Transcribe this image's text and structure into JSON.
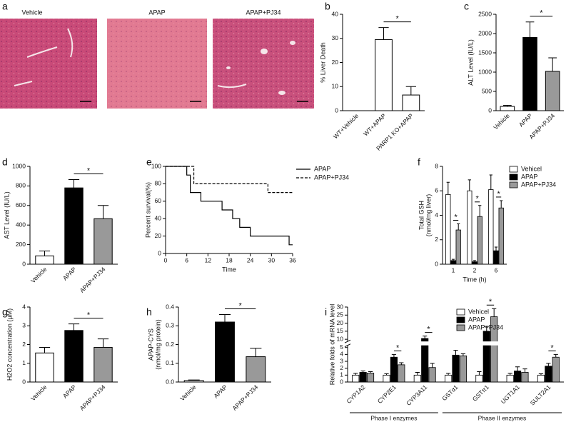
{
  "images": {
    "panel": "a",
    "labels": [
      "Vehicle",
      "APAP",
      "APAP+PJ34"
    ]
  },
  "chart_data": [
    {
      "type": "bar",
      "panel": "b",
      "ylabel": "% Liver Death",
      "categories": [
        "WT+Vehicle",
        "WT+APAP",
        "PARP1 KO+APAP"
      ],
      "values": [
        0,
        29.5,
        6.5
      ],
      "errors": [
        null,
        5,
        3.5
      ],
      "colors": [
        "#ffffff",
        "#ffffff",
        "#ffffff"
      ],
      "ylim": [
        0,
        40
      ],
      "yticks": [
        0,
        10,
        20,
        30,
        40
      ],
      "significance": [
        {
          "between": [
            1,
            2
          ],
          "label": "*"
        }
      ]
    },
    {
      "type": "bar",
      "panel": "c",
      "ylabel": "ALT Level (IU/L)",
      "categories": [
        "Vehicle",
        "APAP",
        "APAP+PJ34"
      ],
      "values": [
        110,
        1900,
        1020
      ],
      "errors": [
        30,
        400,
        350
      ],
      "colors": [
        "#ffffff",
        "#000000",
        "#999999"
      ],
      "ylim": [
        0,
        2500
      ],
      "yticks": [
        0,
        500,
        1000,
        1500,
        2000,
        2500
      ],
      "significance": [
        {
          "between": [
            1,
            2
          ],
          "label": "*"
        }
      ]
    },
    {
      "type": "bar",
      "panel": "d",
      "ylabel": "AST Level (IU/L)",
      "categories": [
        "Vehicle",
        "APAP",
        "APAP+PJ34"
      ],
      "values": [
        85,
        780,
        465
      ],
      "errors": [
        50,
        85,
        135
      ],
      "colors": [
        "#ffffff",
        "#000000",
        "#999999"
      ],
      "ylim": [
        0,
        1000
      ],
      "yticks": [
        0,
        200,
        400,
        600,
        800,
        1000
      ],
      "significance": [
        {
          "between": [
            1,
            2
          ],
          "label": "*"
        }
      ]
    },
    {
      "type": "line",
      "panel": "e",
      "ylabel": "Percent survival(%)",
      "xlabel": "Time",
      "xlim": [
        0,
        36
      ],
      "xticks": [
        0,
        6,
        12,
        18,
        24,
        30,
        36
      ],
      "ylim": [
        0,
        100
      ],
      "yticks": [
        0,
        20,
        40,
        60,
        80,
        100
      ],
      "series": [
        {
          "name": "APAP",
          "color": "#000000",
          "dashed": false,
          "x": [
            0,
            6,
            7,
            10,
            16,
            19,
            21,
            24,
            35,
            36
          ],
          "values": [
            100,
            90,
            70,
            60,
            50,
            40,
            30,
            20,
            10,
            10
          ]
        },
        {
          "name": "APAP+PJ34",
          "color": "#000000",
          "dashed": true,
          "x": [
            0,
            8,
            29,
            36
          ],
          "values": [
            100,
            80,
            70,
            70
          ]
        }
      ]
    },
    {
      "type": "grouped_bar",
      "panel": "f",
      "ylabel": [
        "Total GSH",
        "(nmol/mg liver)"
      ],
      "xlabel": "Time (h)",
      "categories": [
        "1",
        "2",
        "6"
      ],
      "ylim": [
        0,
        8
      ],
      "yticks": [
        0,
        2,
        4,
        6,
        8
      ],
      "series": [
        {
          "name": "Vehicel",
          "color": "#ffffff",
          "values": [
            5.7,
            6.0,
            6.1
          ],
          "errors": [
            1.0,
            0.9,
            1.2
          ]
        },
        {
          "name": "APAP",
          "color": "#000000",
          "values": [
            0.3,
            0.2,
            1.1
          ],
          "errors": [
            0.1,
            0.1,
            0.3
          ]
        },
        {
          "name": "APAP+PJ34",
          "color": "#999999",
          "values": [
            2.8,
            3.9,
            4.6
          ],
          "errors": [
            0.5,
            0.9,
            0.6
          ]
        }
      ],
      "significance": [
        {
          "category": 0,
          "between": [
            1,
            2
          ],
          "label": "*"
        },
        {
          "category": 1,
          "between": [
            1,
            2
          ],
          "label": "*"
        },
        {
          "category": 2,
          "between": [
            1,
            2
          ],
          "label": "*"
        }
      ]
    },
    {
      "type": "bar",
      "panel": "g",
      "ylabel": "H2O2 concentration (μM)",
      "categories": [
        "Vehicle",
        "APAP",
        "APAP+PJ34"
      ],
      "values": [
        1.55,
        2.75,
        1.85
      ],
      "errors": [
        0.3,
        0.35,
        0.45
      ],
      "colors": [
        "#ffffff",
        "#000000",
        "#999999"
      ],
      "ylim": [
        0,
        4
      ],
      "yticks": [
        0,
        1,
        2,
        3,
        4
      ],
      "significance": [
        {
          "between": [
            1,
            2
          ],
          "label": "*"
        }
      ]
    },
    {
      "type": "bar",
      "panel": "h",
      "ylabel": [
        "APAP-CYS",
        "(nmol/mg protein)"
      ],
      "categories": [
        "Vehicle",
        "APAP",
        "APAP+PJ34"
      ],
      "values": [
        0.008,
        0.32,
        0.135
      ],
      "errors": [
        0.003,
        0.04,
        0.045
      ],
      "colors": [
        "#ffffff",
        "#000000",
        "#999999"
      ],
      "ylim": [
        0,
        0.4
      ],
      "yticks": [
        {
          "value": 0,
          "label": "0.0"
        },
        0.1,
        0.2,
        0.3,
        0.4
      ],
      "significance": [
        {
          "between": [
            1,
            2
          ],
          "label": "*"
        }
      ]
    },
    {
      "type": "grouped_bar",
      "panel": "i",
      "ylabel": "Relative folds of mRNA level",
      "categories": [
        "CYP1A2",
        "CYP2E1",
        "CYP3A11",
        "GSTα1",
        "GSTπ1",
        "UGT1A1",
        "SULT2A1"
      ],
      "groups": [
        {
          "label": "Phase I enzymes",
          "count": 3
        },
        {
          "label": "Phase II enzymes",
          "count": 4
        }
      ],
      "ylim": [
        0,
        30
      ],
      "ybreak": [
        5,
        10
      ],
      "yticks": [
        0,
        1,
        2,
        3,
        4,
        5,
        10,
        15,
        20,
        25,
        30
      ],
      "series": [
        {
          "name": "Vehicel",
          "color": "#ffffff",
          "values": [
            1.0,
            1.0,
            1.0,
            1.0,
            1.0,
            1.0,
            1.0
          ],
          "errors": [
            0.25,
            0.2,
            0.4,
            0.25,
            0.5,
            0.25,
            0.2
          ]
        },
        {
          "name": "APAP",
          "color": "#000000",
          "values": [
            1.4,
            3.6,
            10.5,
            3.9,
            15,
            1.6,
            2.3
          ],
          "errors": [
            0.2,
            0.4,
            1.5,
            0.7,
            3,
            0.6,
            0.4
          ]
        },
        {
          "name": "APAP+PJ34",
          "color": "#999999",
          "values": [
            1.3,
            2.5,
            2.1,
            3.8,
            24,
            1.4,
            3.6
          ],
          "errors": [
            0.2,
            0.3,
            0.6,
            0.3,
            5,
            0.5,
            0.4
          ]
        }
      ],
      "significance": [
        {
          "category": 1,
          "between": [
            1,
            2
          ],
          "label": "*"
        },
        {
          "category": 2,
          "between": [
            1,
            2
          ],
          "label": "*"
        },
        {
          "category": 4,
          "between": [
            1,
            2
          ],
          "label": "*"
        },
        {
          "category": 6,
          "between": [
            1,
            2
          ],
          "label": "*"
        }
      ]
    }
  ]
}
